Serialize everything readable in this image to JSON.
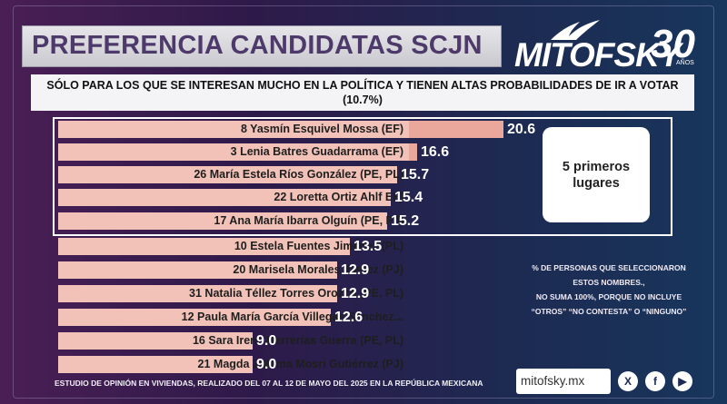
{
  "header": {
    "title": "PREFERENCIA CANDIDATAS SCJN",
    "logo_text": "MITOFSKY",
    "logo_number": "30",
    "logo_years": "AÑOS"
  },
  "subtitle": {
    "line1": "SÓLO PARA LOS QUE SE INTERESAN MUCHO EN LA POLÍTICA Y TIENEN ALTAS PROBABILIDADES DE IR A VOTAR",
    "line2": "(10.7%)"
  },
  "top_box_label": "5 primeros lugares",
  "note": {
    "line1": "% DE PERSONAS QUE SELECCIONARON",
    "line2": "ESTOS NOMBRES.,",
    "line3": "NO SUMA 100%, PORQUE NO INCLUYE",
    "line4": "“OTROS” “NO CONTESTA” O “NINGUNO”"
  },
  "footer": "ESTUDIO DE OPINIÓN EN VIVIENDAS, REALIZADO DEL 07 AL 12 DE MAYO DEL 2025 EN LA REPÚBLICA MEXICANA",
  "social": {
    "url": "mitofsky.mx",
    "icons": [
      "x-icon",
      "facebook-icon",
      "youtube-icon"
    ]
  },
  "colors": {
    "bar_light": "#f2c2b8",
    "bar_dark": "#e9a89b",
    "background_left": "#4a1f55",
    "background_right": "#18365c"
  },
  "chart_data": {
    "type": "bar",
    "orientation": "horizontal",
    "title": "PREFERENCIA CANDIDATAS SCJN",
    "categories": [
      "8 Yasmín Esquivel Mossa (EF)",
      "3 Lenia Batres Guadarrama (EF)",
      "26 María Estela Ríos González (PE, PL)",
      "22 Loretta Ortiz Ahlf EF)",
      "17 Ana María Ibarra Olguín (PE, PJ)",
      "10 Estela Fuentes Jiménez (PL)",
      "20 Marisela Morales Ibañez (PJ)",
      "31 Natalia Téllez Torres Orozco (PE, PL)",
      "12 Paula María García Villegas Sánchez...",
      "16 Sara Irene Herrerías Guerra (PE, PL)",
      "21 Magda Zulema Mosri Gutiérrez (PJ)"
    ],
    "values": [
      20.6,
      16.6,
      15.7,
      15.4,
      15.2,
      13.5,
      12.9,
      12.9,
      12.6,
      9.0,
      9.0
    ],
    "value_labels": [
      "20.6",
      "16.6",
      "15.7",
      "15.4",
      "15.2",
      "13.5",
      "12.9",
      "12.9",
      "12.6",
      "9.0",
      "9.0"
    ],
    "highlight_top": 5,
    "grid": false
  }
}
